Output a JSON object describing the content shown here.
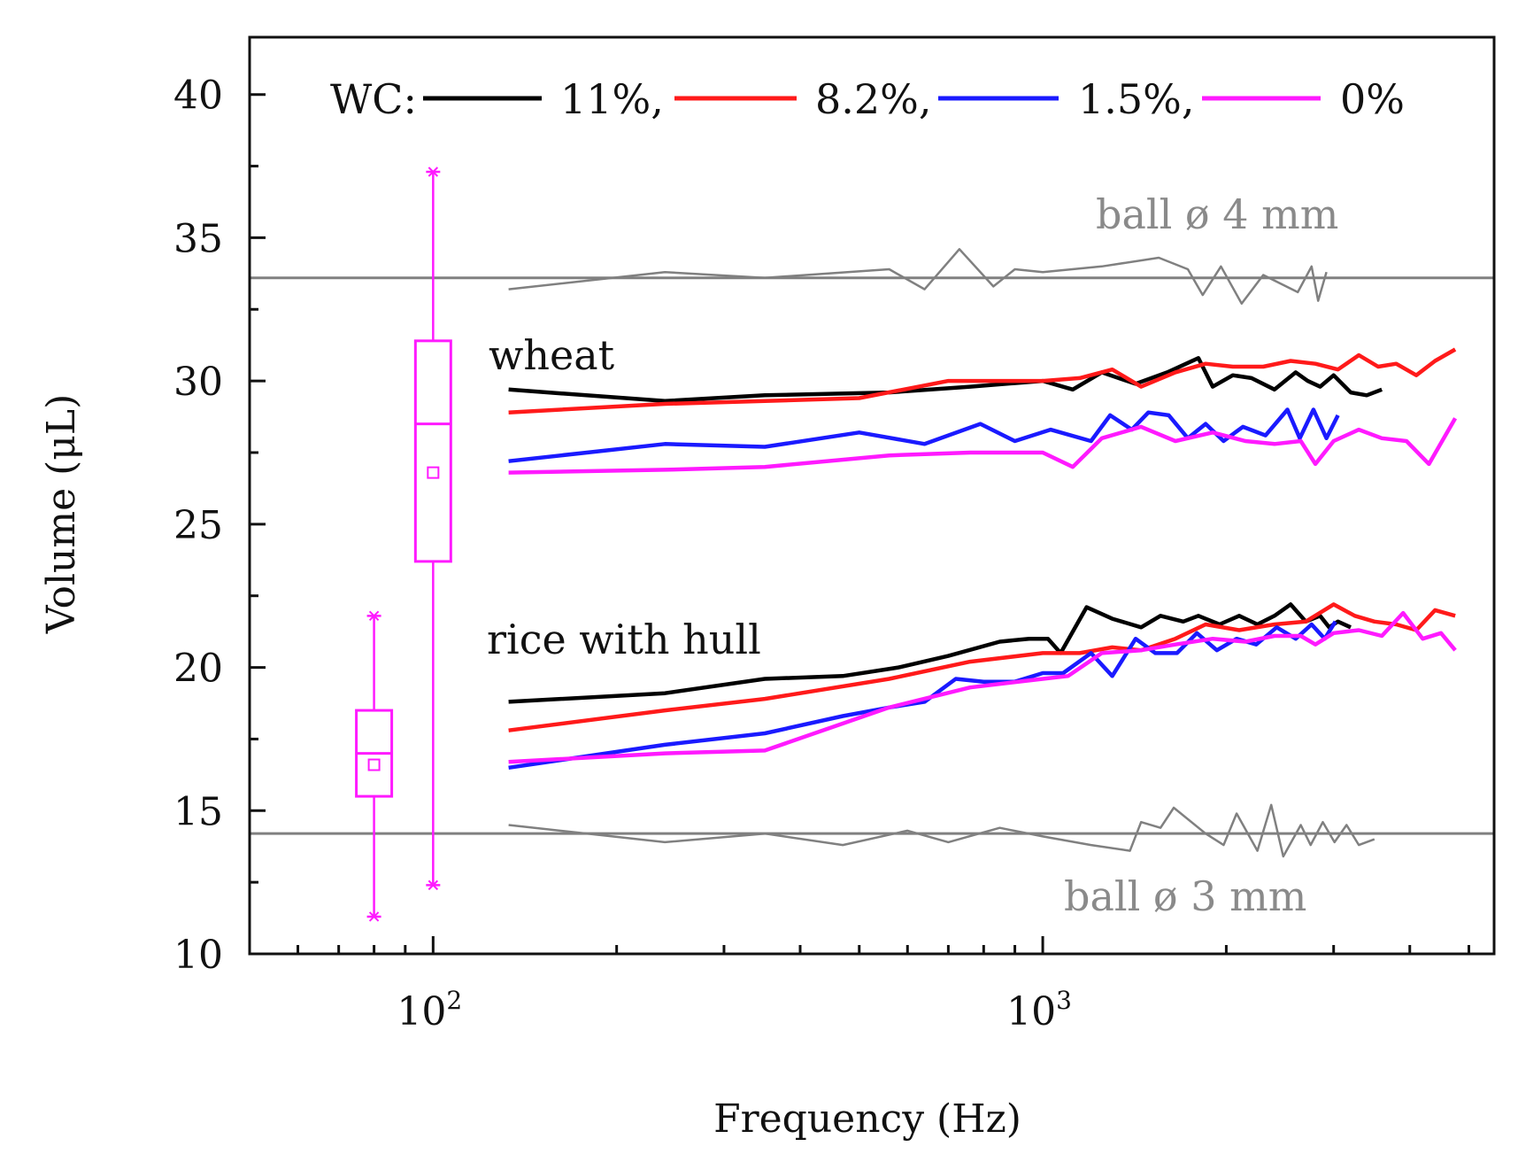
{
  "chart_data": {
    "type": "line",
    "xscale": "log",
    "xlabel": "Frequency (Hz)",
    "ylabel": "Volume (μL)",
    "xlim": [
      50,
      5500
    ],
    "ylim": [
      10,
      42
    ],
    "yticks": [
      10,
      15,
      20,
      25,
      30,
      35,
      40
    ],
    "ytick_labels": [
      "10",
      "15",
      "20",
      "25",
      "30",
      "35",
      "40"
    ],
    "xticks": [
      100,
      1000
    ],
    "xtick_labels": [
      "10²",
      "10³"
    ],
    "legend": {
      "prefix": "WC:",
      "entries": [
        {
          "label": "11%,",
          "color": "#000000"
        },
        {
          "label": "8.2%,",
          "color": "#ff1a1a"
        },
        {
          "label": "1.5%,",
          "color": "#1a1aff"
        },
        {
          "label": "0%",
          "color": "#ff1aff"
        }
      ]
    },
    "annotations": {
      "wheat": "wheat",
      "rice": "rice with hull",
      "ball4": "ball ø 4 mm",
      "ball3": "ball ø 3 mm"
    },
    "reference_lines": [
      {
        "name": "ball 4 mm",
        "y": 33.6,
        "color": "#808080"
      },
      {
        "name": "ball 3 mm",
        "y": 14.2,
        "color": "#808080"
      }
    ],
    "gray_noise": [
      {
        "name": "ball 4 mm measured",
        "color": "#808080",
        "x": [
          133,
          240,
          350,
          560,
          640,
          730,
          830,
          900,
          1000,
          1250,
          1550,
          1730,
          1830,
          1960,
          2120,
          2300,
          2620,
          2760,
          2830,
          2920
        ],
        "y": [
          33.2,
          33.8,
          33.6,
          33.9,
          33.2,
          34.6,
          33.3,
          33.9,
          33.8,
          34.0,
          34.3,
          33.9,
          33.0,
          34.0,
          32.7,
          33.7,
          33.1,
          34.0,
          32.8,
          33.8
        ]
      },
      {
        "name": "ball 3 mm measured",
        "color": "#808080",
        "x": [
          133,
          240,
          350,
          470,
          600,
          700,
          850,
          1000,
          1200,
          1390,
          1450,
          1560,
          1640,
          1850,
          1980,
          2080,
          2250,
          2370,
          2480,
          2650,
          2750,
          2880,
          3010,
          3150,
          3300,
          3500
        ],
        "y": [
          14.5,
          13.9,
          14.2,
          13.8,
          14.3,
          13.9,
          14.4,
          14.1,
          13.8,
          13.6,
          14.6,
          14.4,
          15.1,
          14.2,
          13.8,
          14.9,
          13.6,
          15.2,
          13.4,
          14.5,
          13.8,
          14.6,
          13.9,
          14.5,
          13.8,
          14.0
        ]
      }
    ],
    "series": [
      {
        "name": "wheat 11%",
        "color": "#000000",
        "x": [
          133,
          240,
          350,
          560,
          760,
          1000,
          1120,
          1250,
          1420,
          1600,
          1800,
          1900,
          2050,
          2200,
          2400,
          2600,
          2720,
          2850,
          3000,
          3200,
          3400,
          3600
        ],
        "y": [
          29.7,
          29.3,
          29.5,
          29.6,
          29.8,
          30.0,
          29.7,
          30.3,
          29.9,
          30.3,
          30.8,
          29.8,
          30.2,
          30.1,
          29.7,
          30.3,
          30.0,
          29.8,
          30.2,
          29.6,
          29.5,
          29.7
        ]
      },
      {
        "name": "wheat 8.2%",
        "color": "#ff1a1a",
        "x": [
          133,
          240,
          350,
          500,
          700,
          1000,
          1150,
          1300,
          1450,
          1650,
          1850,
          2050,
          2300,
          2550,
          2800,
          3050,
          3300,
          3550,
          3800,
          4100,
          4400,
          4750
        ],
        "y": [
          28.9,
          29.2,
          29.3,
          29.4,
          30.0,
          30.0,
          30.1,
          30.4,
          29.8,
          30.3,
          30.6,
          30.5,
          30.5,
          30.7,
          30.6,
          30.4,
          30.9,
          30.5,
          30.6,
          30.2,
          30.7,
          31.1
        ]
      },
      {
        "name": "wheat 1.5%",
        "color": "#1a1aff",
        "x": [
          133,
          240,
          350,
          500,
          640,
          790,
          900,
          1030,
          1200,
          1290,
          1400,
          1490,
          1610,
          1730,
          1850,
          1980,
          2130,
          2320,
          2520,
          2640,
          2780,
          2920,
          3050
        ],
        "y": [
          27.2,
          27.8,
          27.7,
          28.2,
          27.8,
          28.5,
          27.9,
          28.3,
          27.9,
          28.8,
          28.3,
          28.9,
          28.8,
          28.0,
          28.5,
          27.9,
          28.4,
          28.1,
          29.0,
          28.0,
          29.0,
          28.0,
          28.8
        ]
      },
      {
        "name": "wheat 0%",
        "color": "#ff1aff",
        "x": [
          133,
          240,
          350,
          560,
          760,
          1000,
          1120,
          1250,
          1450,
          1650,
          1900,
          2150,
          2400,
          2650,
          2800,
          3000,
          3300,
          3600,
          3950,
          4300,
          4750
        ],
        "y": [
          26.8,
          26.9,
          27.0,
          27.4,
          27.5,
          27.5,
          27.0,
          28.0,
          28.4,
          27.9,
          28.2,
          27.9,
          27.8,
          27.9,
          27.1,
          27.9,
          28.3,
          28.0,
          27.9,
          27.1,
          28.7
        ]
      },
      {
        "name": "rice 11%",
        "color": "#000000",
        "x": [
          133,
          240,
          350,
          470,
          580,
          700,
          850,
          950,
          1020,
          1070,
          1180,
          1300,
          1450,
          1560,
          1700,
          1800,
          1950,
          2100,
          2250,
          2400,
          2550,
          2700,
          2850,
          2950,
          3050,
          3200
        ],
        "y": [
          18.8,
          19.1,
          19.6,
          19.7,
          20.0,
          20.4,
          20.9,
          21.0,
          21.0,
          20.5,
          22.1,
          21.7,
          21.4,
          21.8,
          21.6,
          21.8,
          21.5,
          21.8,
          21.5,
          21.8,
          22.2,
          21.6,
          21.8,
          21.4,
          21.6,
          21.4
        ]
      },
      {
        "name": "rice 8.2%",
        "color": "#ff1a1a",
        "x": [
          133,
          240,
          350,
          560,
          760,
          1000,
          1150,
          1300,
          1450,
          1650,
          1850,
          2100,
          2400,
          2700,
          3000,
          3250,
          3500,
          3800,
          4100,
          4400,
          4750
        ],
        "y": [
          17.8,
          18.5,
          18.9,
          19.6,
          20.2,
          20.5,
          20.5,
          20.7,
          20.6,
          21.0,
          21.5,
          21.3,
          21.5,
          21.6,
          22.2,
          21.8,
          21.6,
          21.5,
          21.3,
          22.0,
          21.8
        ]
      },
      {
        "name": "rice 1.5%",
        "color": "#1a1aff",
        "x": [
          133,
          240,
          350,
          470,
          560,
          640,
          720,
          800,
          900,
          1000,
          1080,
          1200,
          1300,
          1420,
          1530,
          1660,
          1790,
          1930,
          2080,
          2240,
          2420,
          2600,
          2760,
          2900,
          3020
        ],
        "y": [
          16.5,
          17.3,
          17.7,
          18.3,
          18.6,
          18.8,
          19.6,
          19.5,
          19.5,
          19.8,
          19.8,
          20.5,
          19.7,
          21.0,
          20.5,
          20.5,
          21.2,
          20.6,
          21.0,
          20.8,
          21.4,
          21.0,
          21.5,
          21.0,
          21.6
        ]
      },
      {
        "name": "rice 0%",
        "color": "#ff1aff",
        "x": [
          133,
          240,
          350,
          560,
          760,
          1000,
          1100,
          1250,
          1450,
          1650,
          1900,
          2150,
          2400,
          2650,
          2800,
          3000,
          3300,
          3600,
          3900,
          4200,
          4500,
          4750
        ],
        "y": [
          16.7,
          17.0,
          17.1,
          18.6,
          19.3,
          19.6,
          19.7,
          20.5,
          20.6,
          20.8,
          21.0,
          20.9,
          21.1,
          21.1,
          20.8,
          21.2,
          21.3,
          21.1,
          21.9,
          21.0,
          21.2,
          20.6
        ]
      }
    ],
    "boxplots": [
      {
        "name": "rice 0% distribution",
        "x": 80,
        "whisker_low": 11.3,
        "q1": 15.5,
        "median": 17.0,
        "mean": 16.6,
        "q3": 18.5,
        "whisker_high": 21.8,
        "color": "#ff1aff"
      },
      {
        "name": "wheat 0% distribution",
        "x": 100,
        "whisker_low": 12.4,
        "q1": 23.7,
        "median": 28.5,
        "mean": 26.8,
        "q3": 31.4,
        "whisker_high": 37.3,
        "color": "#ff1aff"
      }
    ]
  }
}
